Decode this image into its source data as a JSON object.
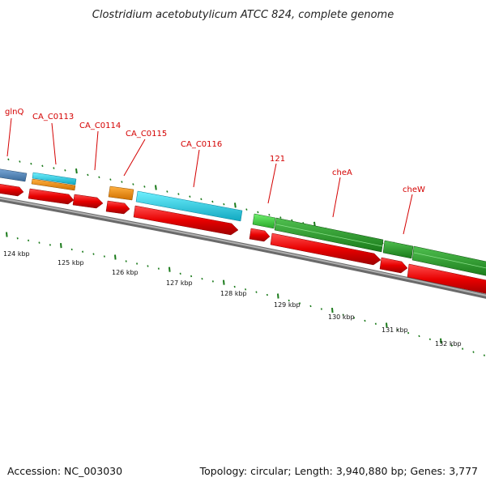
{
  "title": "Clostridium acetobutylicum ATCC 824, complete genome",
  "footer": {
    "accession": "Accession: NC_003030",
    "summary": "Topology: circular; Length: 3,940,880 bp; Genes: 3,777"
  },
  "colors": {
    "cds": "#e80000",
    "backbone": "#8a8a8a",
    "tick": "#1a7a1a",
    "label": "#d40000",
    "steelblue": "#4a7fb5",
    "cyan": "#20c8dc",
    "orange": "#f08c00",
    "green": "#2ea02e",
    "lightgreen": "#3cc83c"
  },
  "scale_labels": [
    "124 kbp",
    "125 kbp",
    "126 kbp",
    "127 kbp",
    "128 kbp",
    "129 kbp",
    "130 kbp",
    "131 kbp",
    "132 kbp"
  ],
  "gene_labels": [
    "glnQ",
    "CA_C0113",
    "CA_C0114",
    "CA_C0115",
    "CA_C0116",
    "121",
    "cheA",
    "cheW"
  ]
}
